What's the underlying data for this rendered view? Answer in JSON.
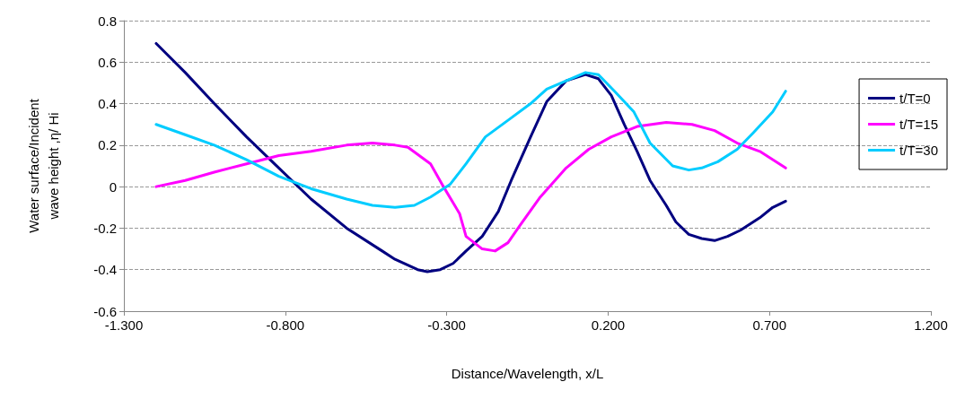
{
  "chart_data": {
    "type": "line",
    "xlabel": "Distance/Wavelength, x/L",
    "ylabel": "Water surface/Incident wave height ,η/ Hi",
    "xlim": [
      -1.3,
      1.2
    ],
    "xticks": [
      {
        "value": -1.3,
        "label": "-1.300"
      },
      {
        "value": -0.8,
        "label": "-0.800"
      },
      {
        "value": -0.3,
        "label": "-0.300"
      },
      {
        "value": 0.2,
        "label": "0.200"
      },
      {
        "value": 0.7,
        "label": "0.700"
      },
      {
        "value": 1.2,
        "label": "1.200"
      }
    ],
    "ylim": [
      -0.6,
      0.8
    ],
    "yticks": [
      -0.6,
      -0.4,
      -0.2,
      0,
      0.2,
      0.4,
      0.6,
      0.8
    ],
    "grid": "y",
    "legend": "right",
    "marker": "none",
    "line_style": "solid",
    "series": [
      {
        "name": "t/T=0",
        "color": "#000080",
        "x": [
          -1.2,
          -1.11,
          -1.02,
          -0.92,
          -0.82,
          -0.72,
          -0.61,
          -0.5,
          -0.46,
          -0.39,
          -0.36,
          -0.32,
          -0.28,
          -0.24,
          -0.19,
          -0.14,
          -0.1,
          -0.04,
          0.01,
          0.07,
          0.13,
          0.17,
          0.21,
          0.25,
          0.29,
          0.33,
          0.38,
          0.41,
          0.45,
          0.49,
          0.53,
          0.57,
          0.61,
          0.67,
          0.71,
          0.75
        ],
        "values": [
          0.69,
          0.55,
          0.4,
          0.24,
          0.09,
          -0.06,
          -0.2,
          -0.31,
          -0.35,
          -0.4,
          -0.41,
          -0.4,
          -0.37,
          -0.31,
          -0.24,
          -0.12,
          0.03,
          0.24,
          0.41,
          0.51,
          0.54,
          0.52,
          0.44,
          0.3,
          0.17,
          0.03,
          -0.09,
          -0.17,
          -0.23,
          -0.25,
          -0.26,
          -0.24,
          -0.21,
          -0.15,
          -0.1,
          -0.07
        ]
      },
      {
        "name": "t/T=15",
        "color": "#ff00ff",
        "x": [
          -1.2,
          -1.11,
          -1.02,
          -0.92,
          -0.82,
          -0.72,
          -0.61,
          -0.53,
          -0.46,
          -0.42,
          -0.35,
          -0.31,
          -0.26,
          -0.24,
          -0.19,
          -0.15,
          -0.11,
          -0.07,
          -0.01,
          0.07,
          0.14,
          0.21,
          0.29,
          0.38,
          0.46,
          0.53,
          0.6,
          0.67,
          0.75
        ],
        "values": [
          0,
          0.03,
          0.07,
          0.11,
          0.15,
          0.17,
          0.2,
          0.21,
          0.2,
          0.19,
          0.11,
          0,
          -0.13,
          -0.24,
          -0.3,
          -0.31,
          -0.27,
          -0.18,
          -0.05,
          0.09,
          0.18,
          0.24,
          0.29,
          0.31,
          0.3,
          0.27,
          0.21,
          0.17,
          0.09
        ]
      },
      {
        "name": "t/T=30",
        "color": "#00ccff",
        "x": [
          -1.2,
          -1.11,
          -1.02,
          -0.92,
          -0.82,
          -0.72,
          -0.61,
          -0.53,
          -0.46,
          -0.4,
          -0.35,
          -0.29,
          -0.24,
          -0.18,
          -0.11,
          -0.04,
          0.01,
          0.07,
          0.13,
          0.17,
          0.22,
          0.28,
          0.33,
          0.4,
          0.45,
          0.49,
          0.54,
          0.6,
          0.65,
          0.71,
          0.75
        ],
        "values": [
          0.3,
          0.25,
          0.2,
          0.13,
          0.05,
          -0.01,
          -0.06,
          -0.09,
          -0.1,
          -0.09,
          -0.05,
          0.01,
          0.11,
          0.24,
          0.32,
          0.4,
          0.47,
          0.51,
          0.55,
          0.54,
          0.46,
          0.36,
          0.21,
          0.1,
          0.08,
          0.09,
          0.12,
          0.18,
          0.26,
          0.36,
          0.46
        ]
      }
    ]
  }
}
